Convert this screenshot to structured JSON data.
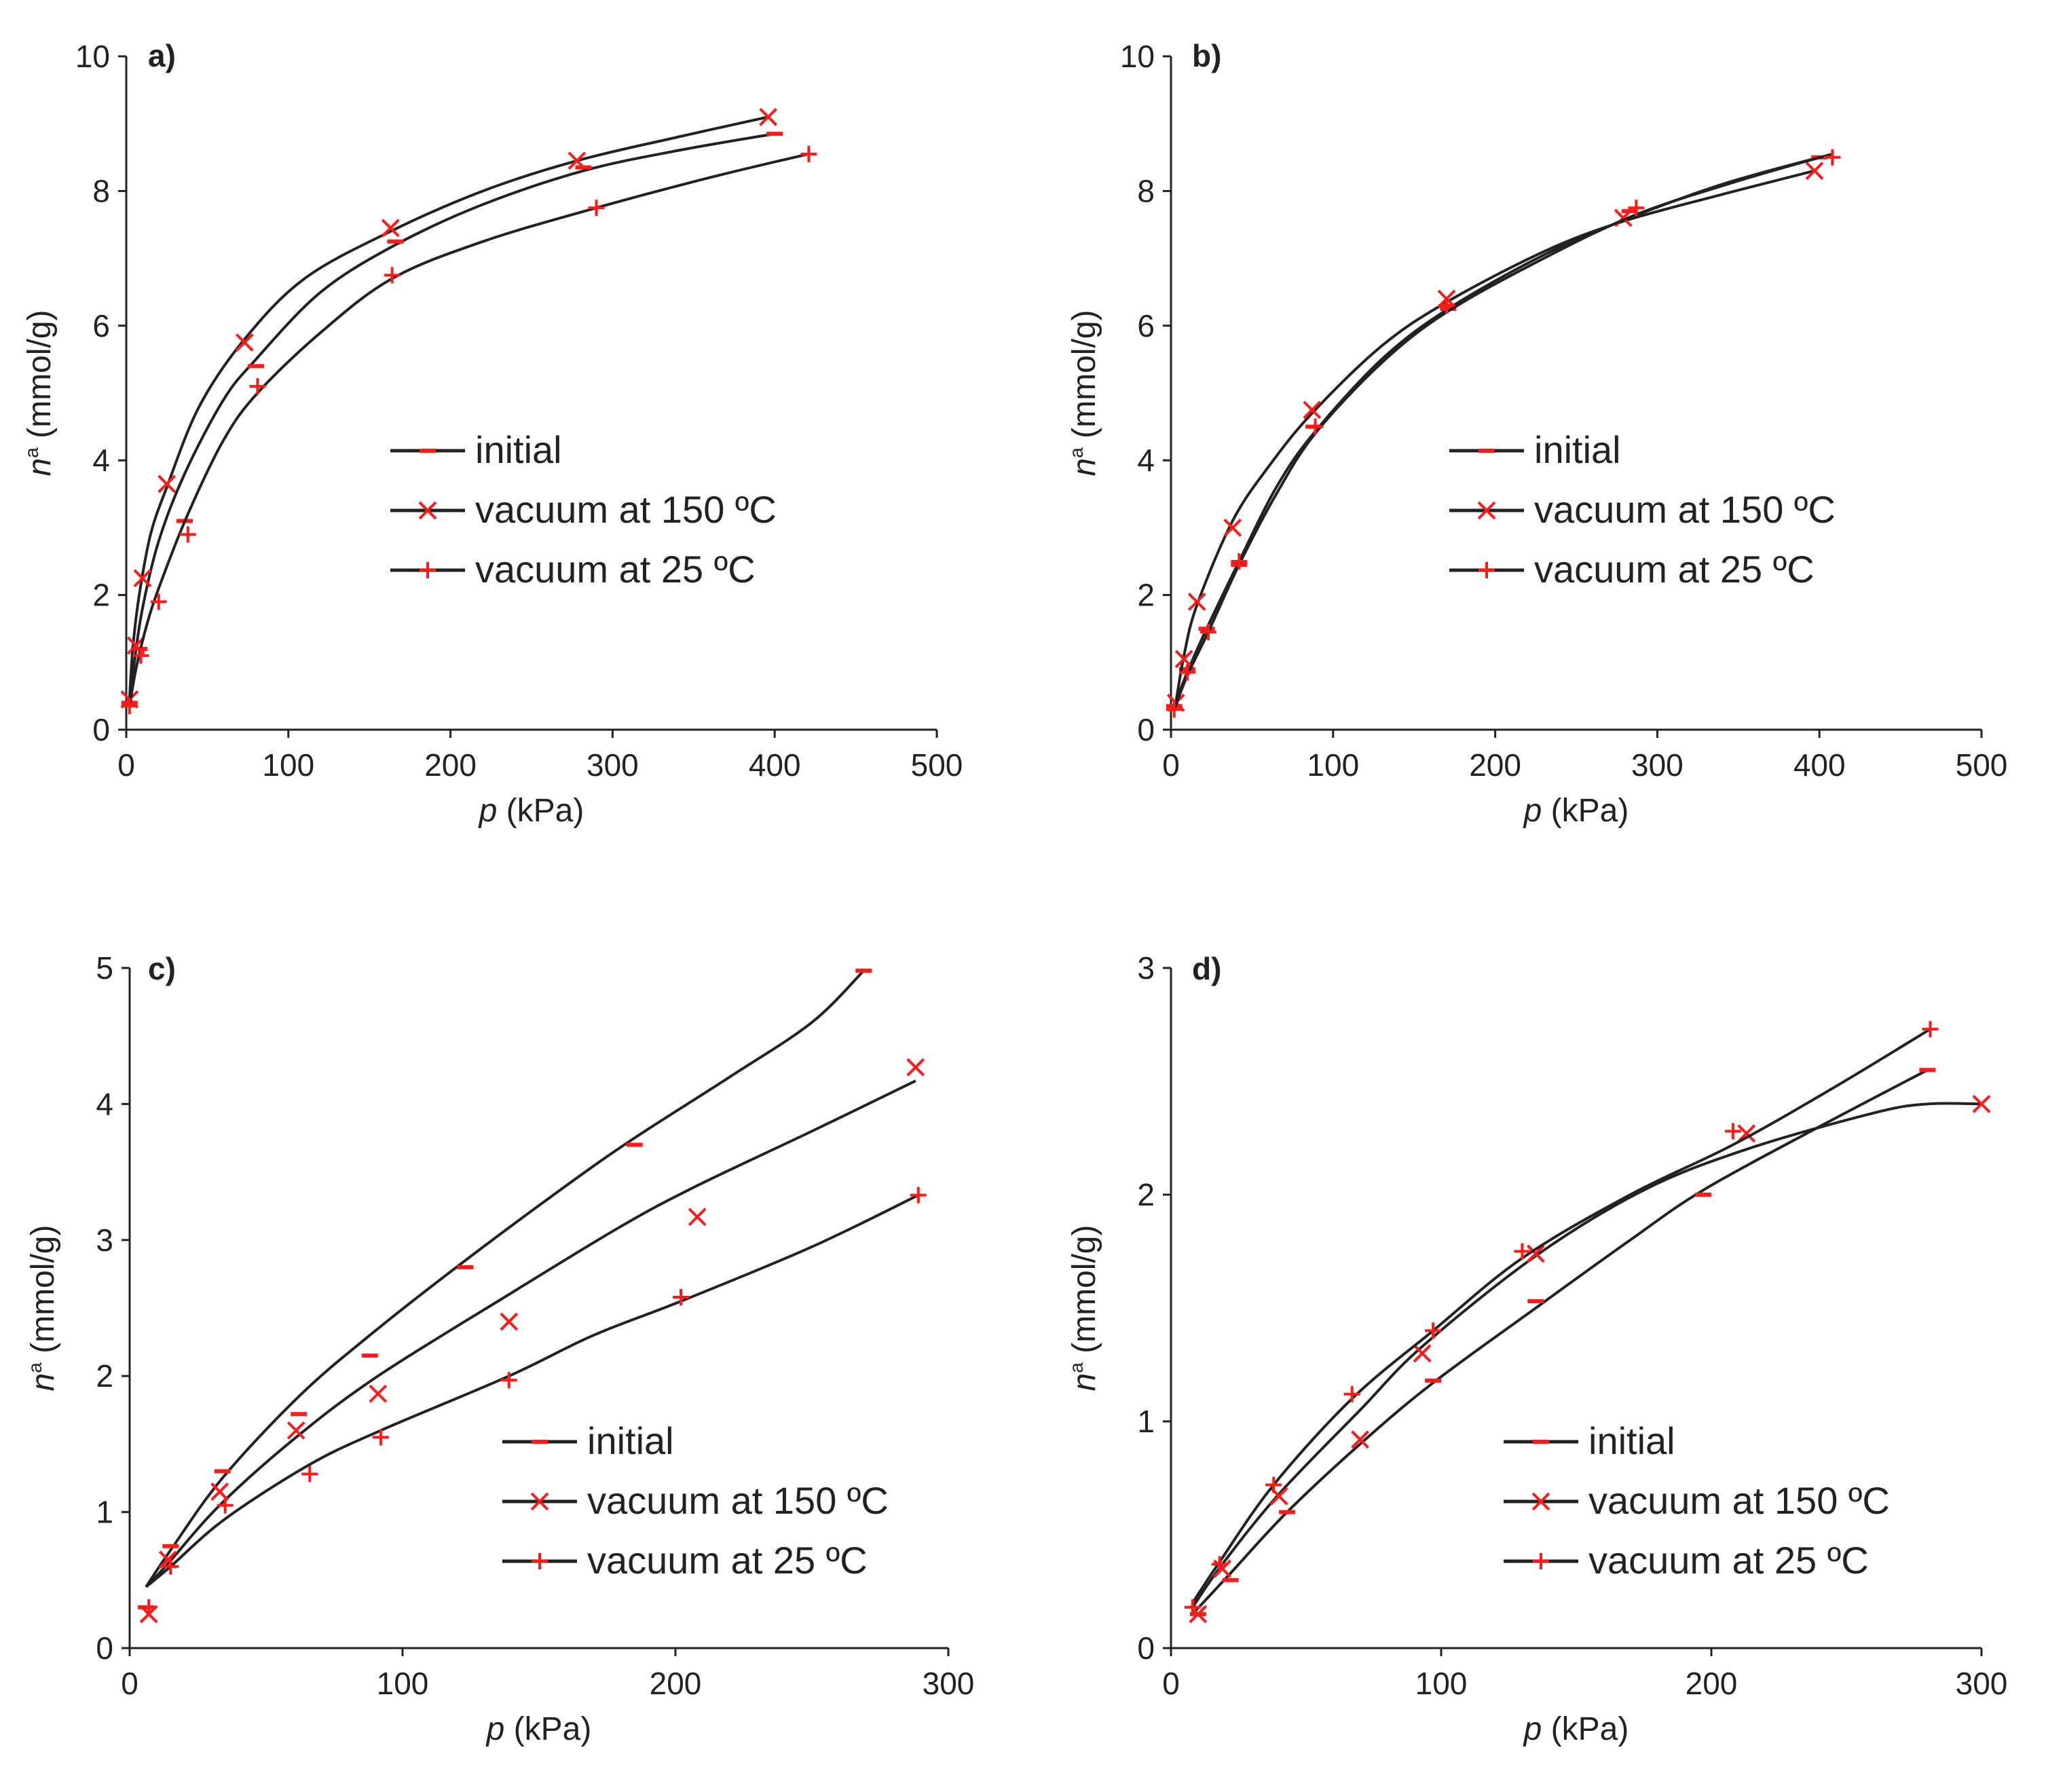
{
  "colors": {
    "axis": "#222222",
    "curve": "#222222",
    "marker": "#ff1a1a"
  },
  "legend": [
    {
      "label": "initial",
      "marker": "dash"
    },
    {
      "label": "vacuum at 150 ºC",
      "marker": "cross"
    },
    {
      "label": "vacuum at 25 ºC",
      "marker": "plus"
    }
  ],
  "chart_data": [
    {
      "type": "scatter",
      "title": "",
      "panel_label": "a)",
      "xlabel_var": "p",
      "xlabel_unit": " (kPa)",
      "ylabel": "n (mmol/g)",
      "ylabel_var": "n",
      "ylabel_sup": "a",
      "ylabel_unit": " (mmol/g)",
      "xlim": [
        0,
        500
      ],
      "ylim": [
        0,
        10
      ],
      "xticks": [
        "0",
        "100",
        "200",
        "300",
        "400",
        "500"
      ],
      "yticks": [
        "0",
        "2",
        "4",
        "6",
        "8",
        "10"
      ],
      "series": [
        {
          "name": "initial",
          "marker": "dash",
          "points": [
            [
              2,
              0.4
            ],
            [
              8,
              1.2
            ],
            [
              36,
              3.1
            ],
            [
              80,
              5.4
            ],
            [
              166,
              7.25
            ],
            [
              282,
              8.35
            ],
            [
              400,
              8.85
            ]
          ],
          "fit": [
            [
              2,
              0.4
            ],
            [
              5,
              1.0
            ],
            [
              10,
              1.8
            ],
            [
              20,
              2.8
            ],
            [
              36,
              3.8
            ],
            [
              60,
              4.9
            ],
            [
              80,
              5.5
            ],
            [
              120,
              6.5
            ],
            [
              166,
              7.2
            ],
            [
              220,
              7.8
            ],
            [
              282,
              8.3
            ],
            [
              340,
              8.6
            ],
            [
              400,
              8.85
            ]
          ]
        },
        {
          "name": "vacuum at 150 ºC",
          "marker": "cross",
          "points": [
            [
              2,
              0.45
            ],
            [
              6,
              1.25
            ],
            [
              10,
              2.25
            ],
            [
              25,
              3.65
            ],
            [
              73,
              5.75
            ],
            [
              163,
              7.45
            ],
            [
              278,
              8.45
            ],
            [
              396,
              9.1
            ]
          ],
          "fit": [
            [
              2,
              0.45
            ],
            [
              4,
              1.2
            ],
            [
              8,
              2.0
            ],
            [
              15,
              2.9
            ],
            [
              25,
              3.6
            ],
            [
              45,
              4.8
            ],
            [
              73,
              5.8
            ],
            [
              110,
              6.7
            ],
            [
              163,
              7.4
            ],
            [
              220,
              8.0
            ],
            [
              278,
              8.45
            ],
            [
              340,
              8.8
            ],
            [
              396,
              9.1
            ]
          ]
        },
        {
          "name": "vacuum at 25 ºC",
          "marker": "plus",
          "points": [
            [
              2,
              0.35
            ],
            [
              9,
              1.1
            ],
            [
              20,
              1.9
            ],
            [
              38,
              2.9
            ],
            [
              81,
              5.1
            ],
            [
              164,
              6.75
            ],
            [
              290,
              7.75
            ],
            [
              421,
              8.55
            ]
          ],
          "fit": [
            [
              2,
              0.35
            ],
            [
              6,
              0.9
            ],
            [
              12,
              1.5
            ],
            [
              20,
              2.1
            ],
            [
              38,
              3.2
            ],
            [
              60,
              4.3
            ],
            [
              81,
              5.0
            ],
            [
              120,
              5.9
            ],
            [
              164,
              6.7
            ],
            [
              220,
              7.25
            ],
            [
              290,
              7.75
            ],
            [
              360,
              8.2
            ],
            [
              421,
              8.55
            ]
          ]
        }
      ]
    },
    {
      "type": "scatter",
      "title": "",
      "panel_label": "b)",
      "xlabel_var": "p",
      "xlabel_unit": " (kPa)",
      "ylabel": "n (mmol/g)",
      "ylabel_var": "n",
      "ylabel_sup": "a",
      "ylabel_unit": " (mmol/g)",
      "xlim": [
        0,
        500
      ],
      "ylim": [
        0,
        10
      ],
      "xticks": [
        "0",
        "100",
        "200",
        "300",
        "400",
        "500"
      ],
      "yticks": [
        "0",
        "2",
        "4",
        "6",
        "8",
        "10"
      ],
      "series": [
        {
          "name": "initial",
          "marker": "dash",
          "points": [
            [
              2,
              0.35
            ],
            [
              10,
              0.9
            ],
            [
              22,
              1.5
            ],
            [
              42,
              2.45
            ],
            [
              88,
              4.5
            ],
            [
              171,
              6.25
            ],
            [
              283,
              7.7
            ],
            [
              400,
              8.5
            ]
          ],
          "fit": [
            [
              2,
              0.35
            ],
            [
              10,
              0.85
            ],
            [
              22,
              1.5
            ],
            [
              42,
              2.5
            ],
            [
              65,
              3.6
            ],
            [
              88,
              4.4
            ],
            [
              130,
              5.5
            ],
            [
              171,
              6.25
            ],
            [
              230,
              7.05
            ],
            [
              283,
              7.6
            ],
            [
              340,
              8.1
            ],
            [
              400,
              8.5
            ]
          ]
        },
        {
          "name": "vacuum at 150 ºC",
          "marker": "cross",
          "points": [
            [
              3,
              0.4
            ],
            [
              8,
              1.05
            ],
            [
              16,
              1.9
            ],
            [
              38,
              3.0
            ],
            [
              87,
              4.75
            ],
            [
              170,
              6.4
            ],
            [
              279,
              7.6
            ],
            [
              397,
              8.3
            ]
          ],
          "fit": [
            [
              3,
              0.4
            ],
            [
              8,
              1.1
            ],
            [
              16,
              1.85
            ],
            [
              38,
              3.1
            ],
            [
              60,
              3.9
            ],
            [
              87,
              4.7
            ],
            [
              130,
              5.7
            ],
            [
              170,
              6.35
            ],
            [
              230,
              7.1
            ],
            [
              279,
              7.55
            ],
            [
              340,
              7.95
            ],
            [
              397,
              8.3
            ]
          ]
        },
        {
          "name": "vacuum at 25 ºC",
          "marker": "plus",
          "points": [
            [
              2,
              0.3
            ],
            [
              10,
              0.85
            ],
            [
              23,
              1.45
            ],
            [
              42,
              2.5
            ],
            [
              89,
              4.5
            ],
            [
              170,
              6.3
            ],
            [
              287,
              7.75
            ],
            [
              408,
              8.5
            ]
          ],
          "fit": [
            [
              2,
              0.3
            ],
            [
              10,
              0.8
            ],
            [
              23,
              1.45
            ],
            [
              42,
              2.45
            ],
            [
              65,
              3.5
            ],
            [
              89,
              4.4
            ],
            [
              130,
              5.45
            ],
            [
              170,
              6.2
            ],
            [
              230,
              7.0
            ],
            [
              287,
              7.65
            ],
            [
              350,
              8.15
            ],
            [
              408,
              8.55
            ]
          ]
        }
      ]
    },
    {
      "type": "scatter",
      "title": "",
      "panel_label": "c)",
      "xlabel_var": "p",
      "xlabel_unit": " (kPa)",
      "ylabel": "n (mmol/g)",
      "ylabel_var": "n",
      "ylabel_sup": "a",
      "ylabel_unit": " (mmol/g)",
      "xlim": [
        0,
        300
      ],
      "ylim": [
        0,
        5
      ],
      "xticks": [
        "0",
        "100",
        "200",
        "300"
      ],
      "yticks": [
        "0",
        "1",
        "2",
        "3",
        "4",
        "5"
      ],
      "series": [
        {
          "name": "initial",
          "marker": "dash",
          "points": [
            [
              6,
              0.3
            ],
            [
              15,
              0.75
            ],
            [
              34,
              1.3
            ],
            [
              62,
              1.72
            ],
            [
              88,
              2.15
            ],
            [
              123,
              2.8
            ],
            [
              185,
              3.7
            ],
            [
              269,
              4.98
            ]
          ],
          "fit": [
            [
              6,
              0.45
            ],
            [
              15,
              0.72
            ],
            [
              34,
              1.25
            ],
            [
              62,
              1.85
            ],
            [
              88,
              2.3
            ],
            [
              123,
              2.85
            ],
            [
              160,
              3.4
            ],
            [
              185,
              3.75
            ],
            [
              220,
              4.2
            ],
            [
              250,
              4.6
            ],
            [
              269,
              4.98
            ]
          ]
        },
        {
          "name": "vacuum at 150 ºC",
          "marker": "cross",
          "points": [
            [
              7,
              0.25
            ],
            [
              14,
              0.65
            ],
            [
              33,
              1.15
            ],
            [
              61,
              1.6
            ],
            [
              91,
              1.87
            ],
            [
              139,
              2.4
            ],
            [
              208,
              3.17
            ],
            [
              288,
              4.27
            ]
          ],
          "fit": [
            [
              6,
              0.45
            ],
            [
              14,
              0.62
            ],
            [
              33,
              1.05
            ],
            [
              61,
              1.55
            ],
            [
              91,
              2.0
            ],
            [
              139,
              2.6
            ],
            [
              180,
              3.1
            ],
            [
              208,
              3.4
            ],
            [
              250,
              3.8
            ],
            [
              288,
              4.17
            ]
          ]
        },
        {
          "name": "vacuum at 25 ºC",
          "marker": "plus",
          "points": [
            [
              7,
              0.3
            ],
            [
              15,
              0.6
            ],
            [
              35,
              1.05
            ],
            [
              66,
              1.28
            ],
            [
              92,
              1.55
            ],
            [
              139,
              1.97
            ],
            [
              202,
              2.58
            ],
            [
              289,
              3.33
            ]
          ],
          "fit": [
            [
              6,
              0.45
            ],
            [
              15,
              0.6
            ],
            [
              35,
              0.95
            ],
            [
              66,
              1.35
            ],
            [
              92,
              1.6
            ],
            [
              139,
              2.0
            ],
            [
              170,
              2.3
            ],
            [
              202,
              2.55
            ],
            [
              250,
              2.95
            ],
            [
              289,
              3.33
            ]
          ]
        }
      ]
    },
    {
      "type": "scatter",
      "title": "",
      "panel_label": "d)",
      "xlabel_var": "p",
      "xlabel_unit": " (kPa)",
      "ylabel": "n (mmol/g)",
      "ylabel_var": "n",
      "ylabel_sup": "a",
      "ylabel_unit": " (mmol/g)",
      "xlim": [
        0,
        300
      ],
      "ylim": [
        0,
        3
      ],
      "xticks": [
        "0",
        "100",
        "200",
        "300"
      ],
      "yticks": [
        "0",
        "1",
        "2",
        "3"
      ],
      "series": [
        {
          "name": "initial",
          "marker": "dash",
          "points": [
            [
              10,
              0.15
            ],
            [
              22,
              0.3
            ],
            [
              43,
              0.6
            ],
            [
              97,
              1.18
            ],
            [
              135,
              1.53
            ],
            [
              197,
              2.0
            ],
            [
              280,
              2.55
            ]
          ],
          "fit": [
            [
              8,
              0.15
            ],
            [
              22,
              0.33
            ],
            [
              43,
              0.6
            ],
            [
              70,
              0.9
            ],
            [
              97,
              1.17
            ],
            [
              135,
              1.5
            ],
            [
              170,
              1.8
            ],
            [
              197,
              2.02
            ],
            [
              240,
              2.3
            ],
            [
              280,
              2.55
            ]
          ]
        },
        {
          "name": "vacuum at 150 ºC",
          "marker": "cross",
          "points": [
            [
              10,
              0.15
            ],
            [
              19,
              0.35
            ],
            [
              40,
              0.67
            ],
            [
              70,
              0.92
            ],
            [
              93,
              1.3
            ],
            [
              135,
              1.74
            ],
            [
              213,
              2.27
            ],
            [
              300,
              2.4
            ]
          ],
          "fit": [
            [
              8,
              0.18
            ],
            [
              19,
              0.37
            ],
            [
              40,
              0.68
            ],
            [
              70,
              1.05
            ],
            [
              93,
              1.33
            ],
            [
              135,
              1.73
            ],
            [
              175,
              2.02
            ],
            [
              213,
              2.2
            ],
            [
              260,
              2.36
            ],
            [
              280,
              2.4
            ],
            [
              300,
              2.4
            ]
          ]
        },
        {
          "name": "vacuum at 25 ºC",
          "marker": "plus",
          "points": [
            [
              8,
              0.18
            ],
            [
              18,
              0.37
            ],
            [
              38,
              0.72
            ],
            [
              67,
              1.12
            ],
            [
              97,
              1.4
            ],
            [
              130,
              1.75
            ],
            [
              208,
              2.28
            ],
            [
              281,
              2.73
            ]
          ],
          "fit": [
            [
              8,
              0.2
            ],
            [
              18,
              0.38
            ],
            [
              38,
              0.72
            ],
            [
              67,
              1.1
            ],
            [
              97,
              1.4
            ],
            [
              130,
              1.72
            ],
            [
              170,
              2.0
            ],
            [
              208,
              2.22
            ],
            [
              245,
              2.47
            ],
            [
              281,
              2.73
            ]
          ]
        }
      ]
    }
  ]
}
